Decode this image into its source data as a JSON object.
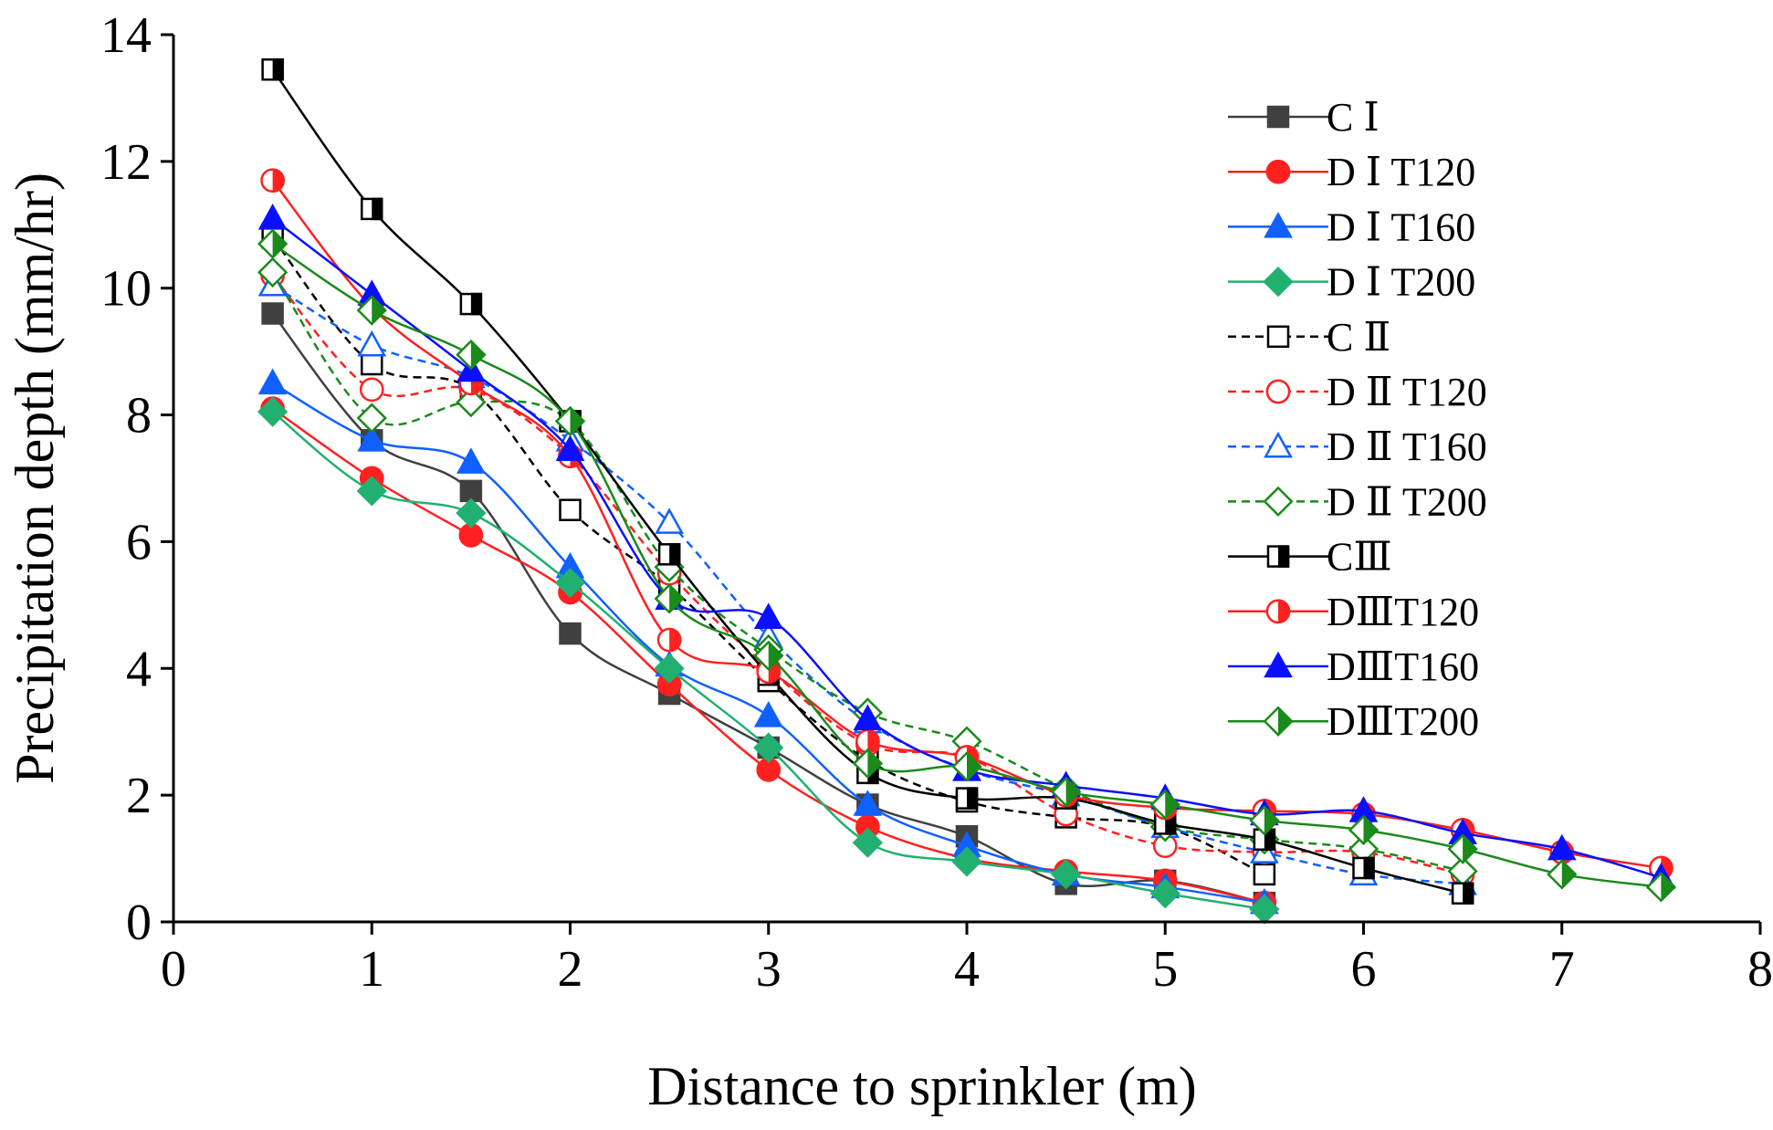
{
  "chart_data": {
    "type": "line",
    "xlabel": "Distance to sprinkler (m)",
    "ylabel": "Precipitation depth (mm/hr)",
    "xlim": [
      0,
      8
    ],
    "ylim": [
      0,
      14
    ],
    "xticks": [
      "0",
      "1",
      "2",
      "3",
      "4",
      "5",
      "6",
      "7",
      "8"
    ],
    "yticks": [
      "0",
      "2",
      "4",
      "6",
      "8",
      "10",
      "12",
      "14"
    ],
    "legend_position": "top-right",
    "series": [
      {
        "name": "C Ⅰ",
        "color": "#404040",
        "dash": "solid",
        "marker": "square",
        "fill": "full",
        "x": [
          0.5,
          1.0,
          1.5,
          2.0,
          2.5,
          3.0,
          3.5,
          4.0,
          4.5,
          5.0,
          5.5
        ],
        "y": [
          9.6,
          7.6,
          6.8,
          4.55,
          3.6,
          2.75,
          1.85,
          1.35,
          0.6,
          0.65,
          0.3
        ]
      },
      {
        "name": "D Ⅰ T120",
        "color": "#ff2020",
        "dash": "solid",
        "marker": "circle",
        "fill": "full",
        "x": [
          0.5,
          1.0,
          1.5,
          2.0,
          2.5,
          3.0,
          3.5,
          4.0,
          4.5,
          5.0,
          5.5
        ],
        "y": [
          8.1,
          7.0,
          6.1,
          5.2,
          3.75,
          2.4,
          1.5,
          1.0,
          0.8,
          0.65,
          0.3
        ]
      },
      {
        "name": "D Ⅰ T160",
        "color": "#1060ff",
        "dash": "solid",
        "marker": "triangle",
        "fill": "full",
        "x": [
          0.5,
          1.0,
          1.5,
          2.0,
          2.5,
          3.0,
          3.5,
          4.0,
          4.5,
          5.0,
          5.5
        ],
        "y": [
          8.5,
          7.6,
          7.25,
          5.6,
          4.05,
          3.25,
          1.85,
          1.2,
          0.75,
          0.55,
          0.3
        ]
      },
      {
        "name": "D Ⅰ T200",
        "color": "#22b070",
        "dash": "solid",
        "marker": "diamond",
        "fill": "full",
        "x": [
          0.5,
          1.0,
          1.5,
          2.0,
          2.5,
          3.0,
          3.5,
          4.0,
          4.5,
          5.0,
          5.5
        ],
        "y": [
          8.05,
          6.8,
          6.45,
          5.35,
          4.0,
          2.75,
          1.25,
          0.95,
          0.75,
          0.45,
          0.2
        ]
      },
      {
        "name": "C Ⅱ",
        "color": "#000000",
        "dash": "dashed",
        "marker": "square",
        "fill": "none",
        "x": [
          0.5,
          1.0,
          1.5,
          2.0,
          2.5,
          3.0,
          3.5,
          4.0,
          4.5,
          5.0,
          5.5
        ],
        "y": [
          10.8,
          8.8,
          8.4,
          6.5,
          5.3,
          3.8,
          2.55,
          1.9,
          1.65,
          1.5,
          0.75
        ]
      },
      {
        "name": "D Ⅱ T120",
        "color": "#ff2020",
        "dash": "dashed",
        "marker": "circle",
        "fill": "none",
        "x": [
          0.5,
          1.0,
          1.5,
          2.0,
          2.5,
          3.0,
          3.5,
          4.0,
          4.5,
          5.0,
          5.5,
          6.0,
          6.5
        ],
        "y": [
          10.2,
          8.4,
          8.4,
          7.35,
          5.5,
          4.0,
          2.8,
          2.6,
          1.7,
          1.2,
          1.1,
          1.1,
          0.75
        ]
      },
      {
        "name": "D Ⅱ T160",
        "color": "#1060ff",
        "dash": "dashed",
        "marker": "triangle",
        "fill": "none",
        "x": [
          0.5,
          1.0,
          1.5,
          2.0,
          2.5,
          3.0,
          3.5,
          4.0,
          4.5,
          5.0,
          5.5,
          6.0,
          6.5
        ],
        "y": [
          10.05,
          9.1,
          8.6,
          7.6,
          6.3,
          4.5,
          3.15,
          2.4,
          2.0,
          1.5,
          1.1,
          0.75,
          0.6
        ]
      },
      {
        "name": "D Ⅱ T200",
        "color": "#1a8a1a",
        "dash": "dashed",
        "marker": "diamond",
        "fill": "none",
        "x": [
          0.5,
          1.0,
          1.5,
          2.0,
          2.5,
          3.0,
          3.5,
          4.0,
          4.5,
          5.0,
          5.5,
          6.0,
          6.5
        ],
        "y": [
          10.25,
          7.95,
          8.2,
          7.9,
          5.6,
          4.3,
          3.3,
          2.85,
          2.1,
          1.5,
          1.3,
          1.15,
          0.8
        ]
      },
      {
        "name": "CⅢ",
        "color": "#000000",
        "dash": "solid",
        "marker": "square",
        "fill": "half",
        "x": [
          0.5,
          1.0,
          1.5,
          2.0,
          2.5,
          3.0,
          3.5,
          4.0,
          4.5,
          5.0,
          5.5,
          6.0,
          6.5
        ],
        "y": [
          13.45,
          11.25,
          9.75,
          7.9,
          5.8,
          3.9,
          2.35,
          1.95,
          1.95,
          1.55,
          1.3,
          0.85,
          0.45
        ]
      },
      {
        "name": "DⅢT120",
        "color": "#ff2020",
        "dash": "solid",
        "marker": "circle",
        "fill": "half",
        "x": [
          0.5,
          1.0,
          1.5,
          2.0,
          2.5,
          3.0,
          3.5,
          4.0,
          4.5,
          5.0,
          5.5,
          6.0,
          6.5,
          7.0,
          7.5
        ],
        "y": [
          11.7,
          9.7,
          8.5,
          7.35,
          4.45,
          3.95,
          2.85,
          2.6,
          2.0,
          1.8,
          1.75,
          1.7,
          1.45,
          1.1,
          0.85
        ]
      },
      {
        "name": "DⅢT160",
        "color": "#0a10ff",
        "dash": "solid",
        "marker": "triangle",
        "fill": "full",
        "x": [
          0.5,
          1.0,
          1.5,
          2.0,
          2.5,
          3.0,
          3.5,
          4.0,
          4.5,
          5.0,
          5.5,
          6.0,
          6.5,
          7.0,
          7.5
        ],
        "y": [
          11.1,
          9.9,
          8.7,
          7.45,
          5.1,
          4.8,
          3.2,
          2.4,
          2.15,
          1.95,
          1.7,
          1.75,
          1.4,
          1.15,
          0.7
        ]
      },
      {
        "name": "DⅢT200",
        "color": "#1a8a1a",
        "dash": "solid",
        "marker": "diamond",
        "fill": "half",
        "x": [
          0.5,
          1.0,
          1.5,
          2.0,
          2.5,
          3.0,
          3.5,
          4.0,
          4.5,
          5.0,
          5.5,
          6.0,
          6.5,
          7.0,
          7.5
        ],
        "y": [
          10.7,
          9.65,
          8.95,
          7.9,
          5.1,
          4.2,
          2.5,
          2.45,
          2.05,
          1.85,
          1.6,
          1.45,
          1.15,
          0.75,
          0.55
        ]
      }
    ]
  }
}
